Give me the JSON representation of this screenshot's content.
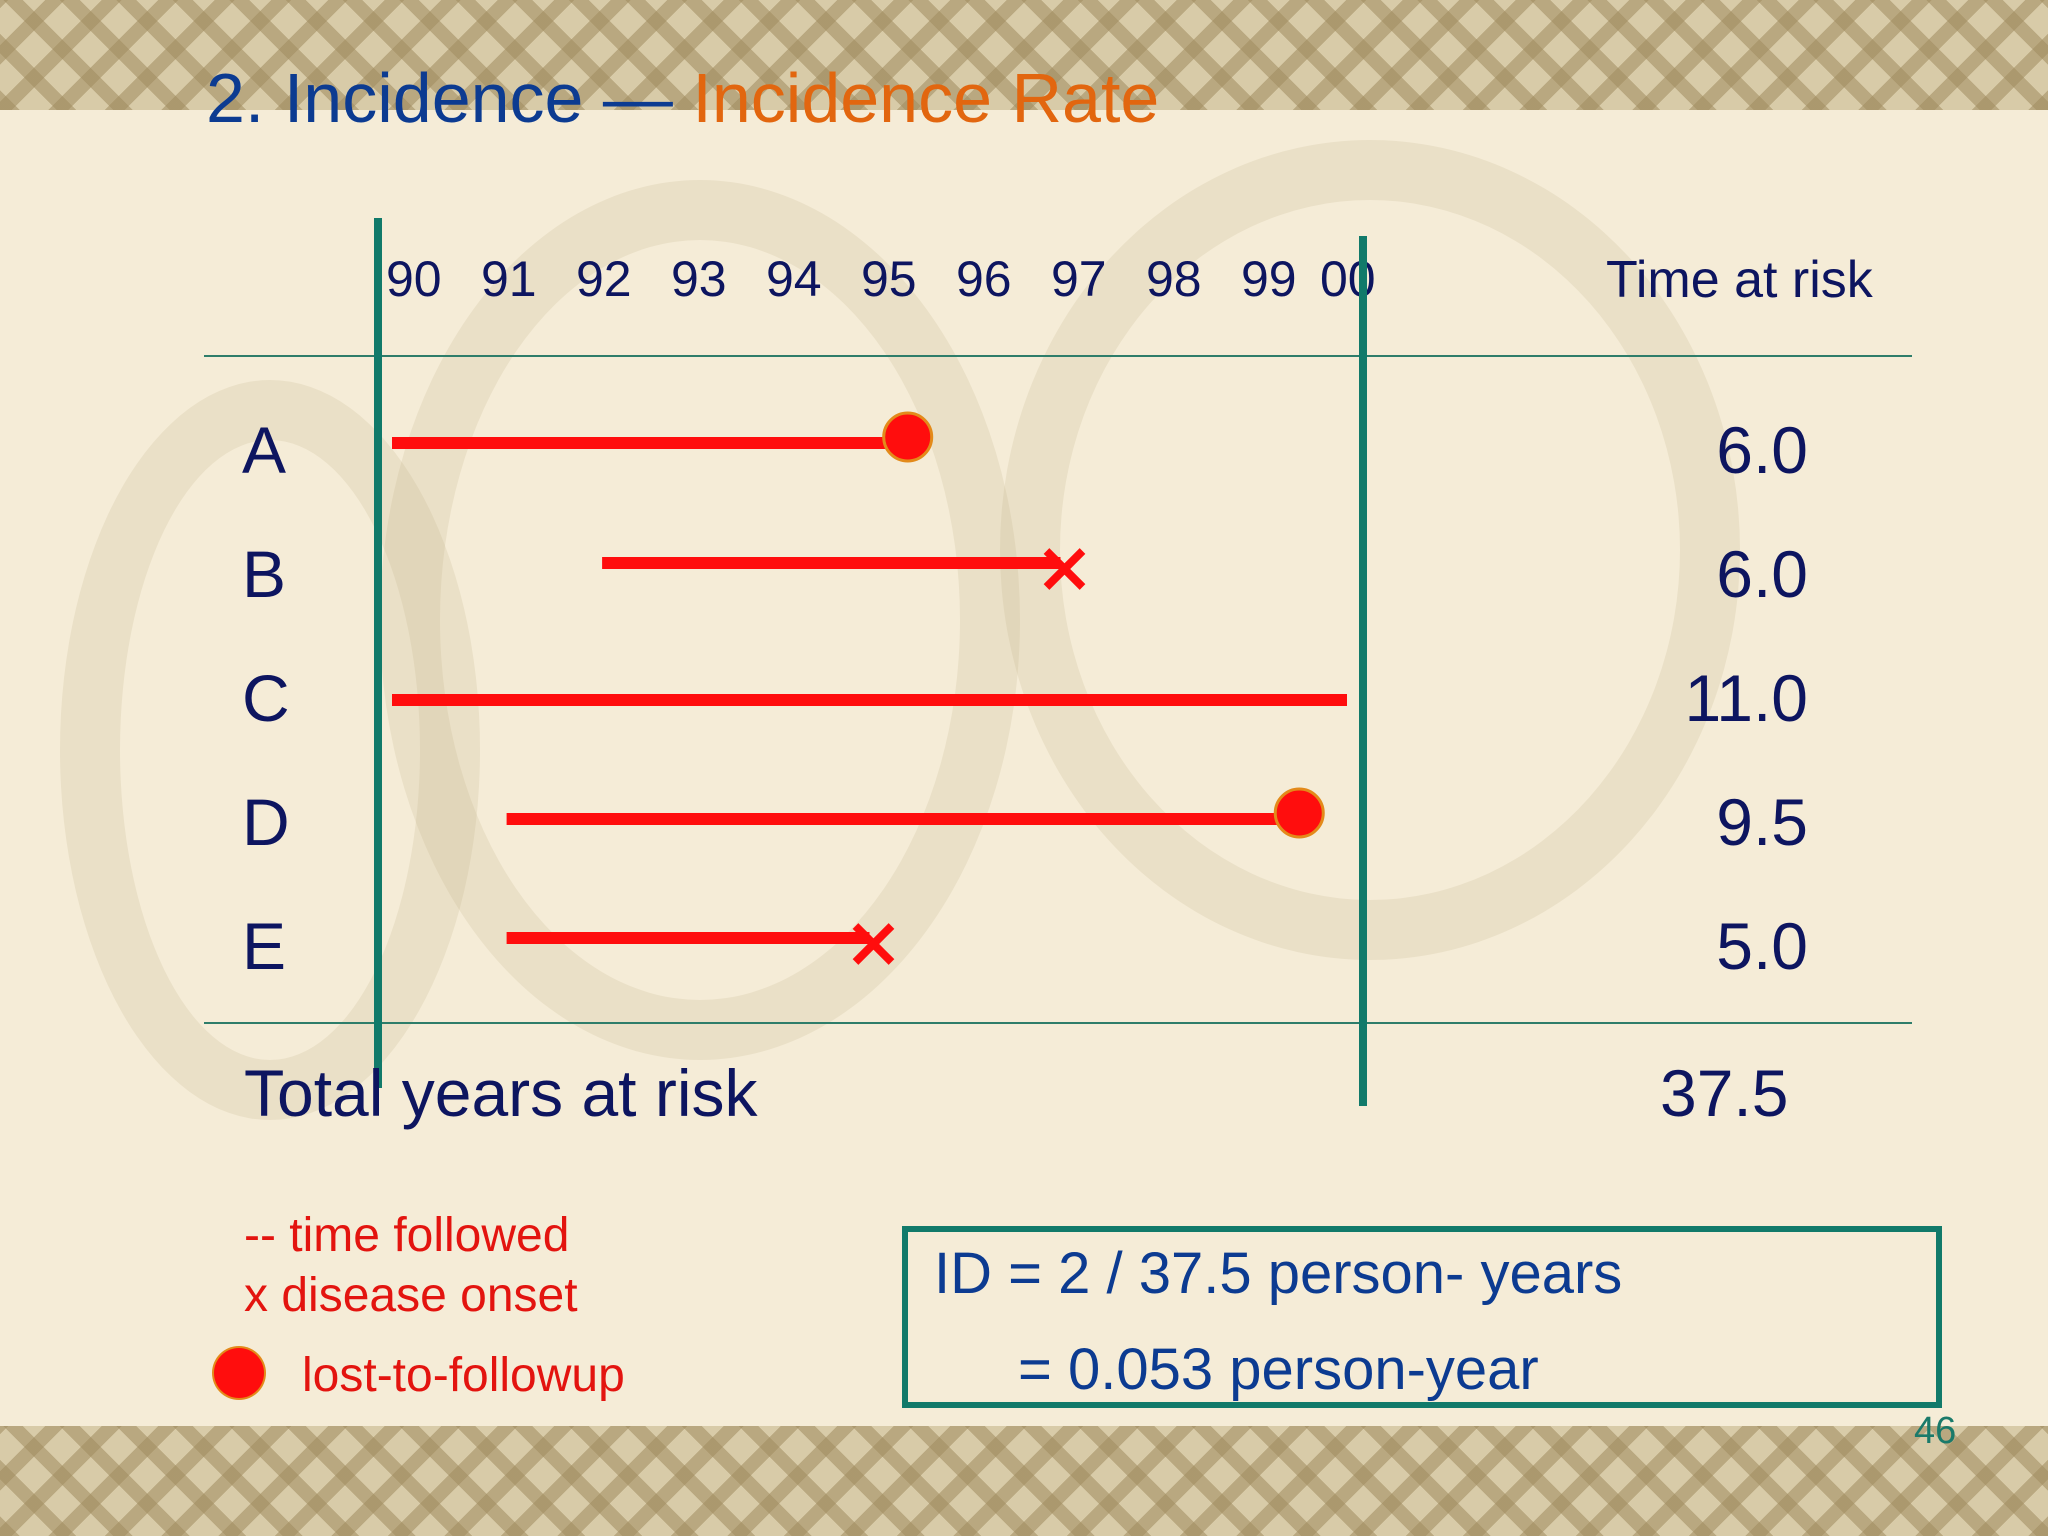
{
  "title": {
    "part1": "2. Incidence — ",
    "part2": "Incidence Rate"
  },
  "colors": {
    "title_blue": "#0c3b91",
    "title_orange": "#e2660f",
    "segment_red": "#ff0d0d",
    "rule_teal": "#117a6a",
    "text_navy": "#0d1560"
  },
  "axis": {
    "ticks": [
      "90",
      "91",
      "92",
      "93",
      "94",
      "95",
      "96",
      "97",
      "98",
      "99",
      "00"
    ]
  },
  "time_at_risk_header": "Time at risk",
  "subjects": [
    {
      "id": "A",
      "start": 90,
      "end": 95.4,
      "end_marker": "lost-to-followup",
      "time_at_risk": "6.0"
    },
    {
      "id": "B",
      "start": 92.2,
      "end": 97,
      "end_marker": "disease-onset",
      "time_at_risk": "6.0"
    },
    {
      "id": "C",
      "start": 90,
      "end": 100,
      "end_marker": "none",
      "time_at_risk": "11.0"
    },
    {
      "id": "D",
      "start": 91.2,
      "end": 99.5,
      "end_marker": "lost-to-followup",
      "time_at_risk": "9.5"
    },
    {
      "id": "E",
      "start": 91.2,
      "end": 95,
      "end_marker": "disease-onset",
      "time_at_risk": "5.0"
    }
  ],
  "total": {
    "label": "Total years at risk",
    "value": "37.5"
  },
  "legend": {
    "followed": "-- time followed",
    "onset": "x disease onset",
    "lost": "lost-to-followup"
  },
  "formula": {
    "line1": "ID = 2 / 37.5  person- years",
    "line2": "= 0.053  person-year"
  },
  "page_number": "46"
}
